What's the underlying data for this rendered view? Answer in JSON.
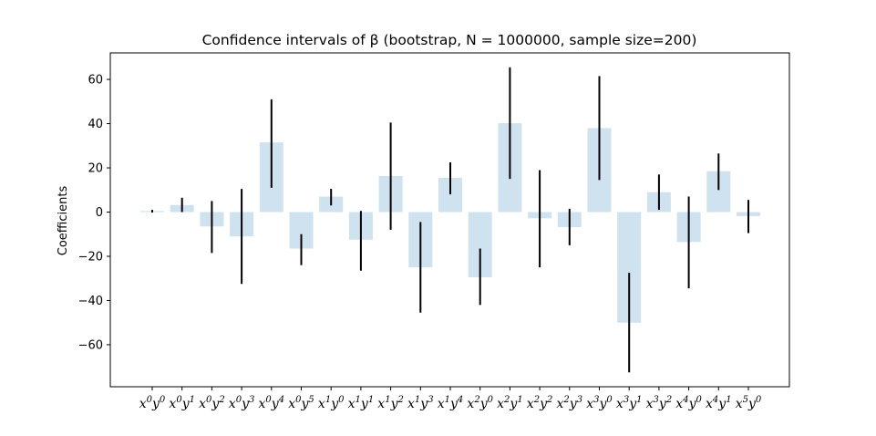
{
  "chart_data": {
    "type": "bar",
    "title": "Confidence intervals of β (bootstrap, N = 1000000, sample size=200)",
    "xlabel": "",
    "ylabel": "Coefficients",
    "ylim": [
      -79,
      72
    ],
    "yticks": [
      -60,
      -40,
      -20,
      0,
      20,
      40,
      60
    ],
    "ytick_labels": [
      "−60",
      "−40",
      "−20",
      "0",
      "20",
      "40",
      "60"
    ],
    "grid": false,
    "bar_color": "#cfe2ef",
    "errorbar_color": "#000000",
    "categories": [
      {
        "base1": "x",
        "exp1": "0",
        "base2": "y",
        "exp2": "0"
      },
      {
        "base1": "x",
        "exp1": "0",
        "base2": "y",
        "exp2": "1"
      },
      {
        "base1": "x",
        "exp1": "0",
        "base2": "y",
        "exp2": "2"
      },
      {
        "base1": "x",
        "exp1": "0",
        "base2": "y",
        "exp2": "3"
      },
      {
        "base1": "x",
        "exp1": "0",
        "base2": "y",
        "exp2": "4"
      },
      {
        "base1": "x",
        "exp1": "0",
        "base2": "y",
        "exp2": "5"
      },
      {
        "base1": "x",
        "exp1": "1",
        "base2": "y",
        "exp2": "0"
      },
      {
        "base1": "x",
        "exp1": "1",
        "base2": "y",
        "exp2": "1"
      },
      {
        "base1": "x",
        "exp1": "1",
        "base2": "y",
        "exp2": "2"
      },
      {
        "base1": "x",
        "exp1": "1",
        "base2": "y",
        "exp2": "3"
      },
      {
        "base1": "x",
        "exp1": "1",
        "base2": "y",
        "exp2": "4"
      },
      {
        "base1": "x",
        "exp1": "2",
        "base2": "y",
        "exp2": "0"
      },
      {
        "base1": "x",
        "exp1": "2",
        "base2": "y",
        "exp2": "1"
      },
      {
        "base1": "x",
        "exp1": "2",
        "base2": "y",
        "exp2": "2"
      },
      {
        "base1": "x",
        "exp1": "2",
        "base2": "y",
        "exp2": "3"
      },
      {
        "base1": "x",
        "exp1": "3",
        "base2": "y",
        "exp2": "0"
      },
      {
        "base1": "x",
        "exp1": "3",
        "base2": "y",
        "exp2": "1"
      },
      {
        "base1": "x",
        "exp1": "3",
        "base2": "y",
        "exp2": "2"
      },
      {
        "base1": "x",
        "exp1": "4",
        "base2": "y",
        "exp2": "0"
      },
      {
        "base1": "x",
        "exp1": "4",
        "base2": "y",
        "exp2": "1"
      },
      {
        "base1": "x",
        "exp1": "5",
        "base2": "y",
        "exp2": "0"
      }
    ],
    "values": [
      0.5,
      3.2,
      -6.5,
      -11,
      31.5,
      -16.5,
      7,
      -12.5,
      16.3,
      -25,
      15.5,
      -29.5,
      40.2,
      -2.8,
      -6.8,
      38,
      -50,
      9,
      -13.5,
      18.5,
      -1.8
    ],
    "error_lower": [
      -0.2,
      0,
      -18.5,
      -32.5,
      11,
      -24,
      3,
      -26.5,
      -8,
      -45.5,
      8,
      -42,
      15,
      -25,
      -15,
      14.5,
      -72.5,
      1,
      -34.5,
      10,
      -9.5
    ],
    "error_upper": [
      1,
      6.5,
      5,
      10.5,
      51,
      -10,
      10.5,
      0.5,
      40.5,
      -4.5,
      22.5,
      -16.5,
      65.5,
      19,
      1.5,
      61.5,
      -27.5,
      17,
      7,
      26.5,
      5.5
    ]
  }
}
